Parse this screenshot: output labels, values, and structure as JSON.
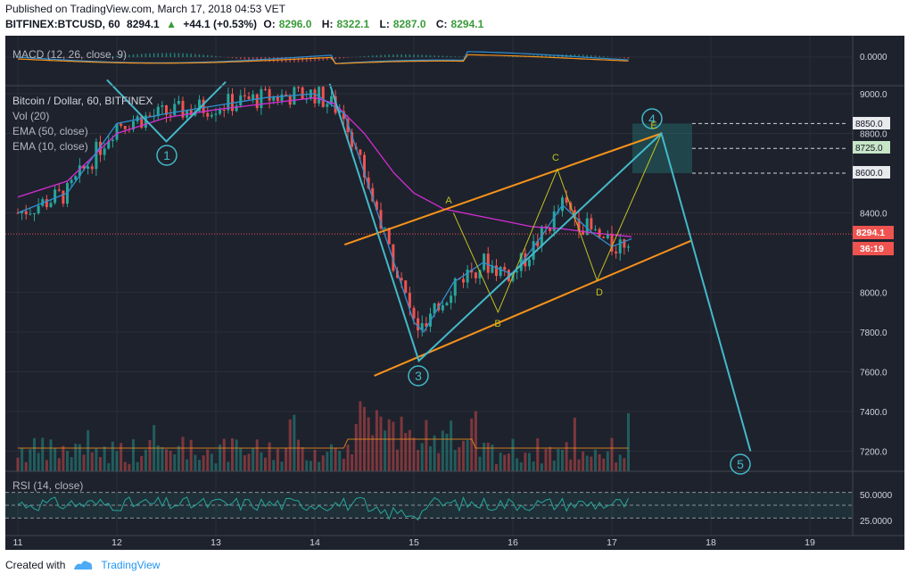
{
  "header": {
    "published": "Published on TradingView.com, March 17, 2018 04:53 VET",
    "symbol": "BITFINEX:BTCUSD, 60",
    "last": "8294.1",
    "change_arrow": "▲",
    "change": "+44.1 (+0.53%)",
    "o_label": "O:",
    "o": "8296.0",
    "h_label": "H:",
    "h": "8322.1",
    "l_label": "L:",
    "l": "8287.0",
    "c_label": "C:",
    "c": "8294.1"
  },
  "panes": {
    "macd": {
      "label": "MACD (12, 26, close, 9)",
      "scale_label": "0.0000"
    },
    "main_labels": [
      "Bitcoin / Dollar, 60, BITFINEX",
      "Vol (20)",
      "EMA (50, close)",
      "EMA (10, close)"
    ],
    "rsi": {
      "label": "RSI (14, close)",
      "ticks": [
        "50.0000",
        "25.0000"
      ]
    }
  },
  "price_badges": {
    "last": "8294.1",
    "countdown": "36:19",
    "targets": [
      "8850.0",
      "8725.0",
      "8600.0"
    ]
  },
  "wave_labels": {
    "circled": [
      "1",
      "3",
      "4",
      "5"
    ],
    "letters": [
      "A",
      "B",
      "C",
      "D",
      "E"
    ]
  },
  "footer": {
    "created_with": "Created with",
    "brand": "TradingView"
  },
  "colors": {
    "background": "#1e222d",
    "up_candle": "#26a69a",
    "down_candle": "#ef5350",
    "ema50": "#d42dd6",
    "ema10": "#2f8fd1",
    "channel": "#f7931a",
    "wave": "#43b9c9",
    "abcde": "#c2c21e",
    "last_price": "#ef5350"
  },
  "chart_data": {
    "type": "candlestick",
    "title": "Bitcoin / Dollar, 60, BITFINEX",
    "x_ticks": [
      "11",
      "12",
      "13",
      "14",
      "15",
      "16",
      "17",
      "18",
      "19"
    ],
    "y_ticks": [
      9000,
      8800,
      8400,
      8000,
      7800,
      7600,
      7400,
      7200
    ],
    "ylim": [
      7100,
      9090
    ],
    "last_price": 8294.1,
    "target_levels": [
      8850.0,
      8725.0,
      8600.0
    ],
    "ema50": [
      [
        11.0,
        8480
      ],
      [
        11.5,
        8560
      ],
      [
        12.0,
        8800
      ],
      [
        12.5,
        8880
      ],
      [
        13.0,
        8920
      ],
      [
        13.5,
        8950
      ],
      [
        14.0,
        8980
      ],
      [
        14.2,
        8950
      ],
      [
        14.5,
        8800
      ],
      [
        14.8,
        8600
      ],
      [
        15.0,
        8500
      ],
      [
        15.3,
        8420
      ],
      [
        15.6,
        8390
      ],
      [
        15.9,
        8360
      ],
      [
        16.2,
        8330
      ],
      [
        16.5,
        8320
      ],
      [
        16.8,
        8300
      ],
      [
        17.0,
        8290
      ],
      [
        17.2,
        8280
      ]
    ],
    "ema10": [
      [
        11.0,
        8400
      ],
      [
        11.5,
        8500
      ],
      [
        12.0,
        8850
      ],
      [
        12.5,
        8900
      ],
      [
        13.0,
        8940
      ],
      [
        13.5,
        8980
      ],
      [
        14.0,
        9000
      ],
      [
        14.3,
        8900
      ],
      [
        14.6,
        8450
      ],
      [
        15.0,
        7850
      ],
      [
        15.1,
        7800
      ],
      [
        15.4,
        8050
      ],
      [
        15.7,
        8150
      ],
      [
        16.0,
        8090
      ],
      [
        16.3,
        8290
      ],
      [
        16.5,
        8440
      ],
      [
        16.8,
        8300
      ],
      [
        17.0,
        8230
      ],
      [
        17.2,
        8270
      ]
    ],
    "elliott_wave": [
      {
        "label": "1",
        "x": 12.5,
        "y": 8760
      },
      {
        "label": "3",
        "x": 15.05,
        "y": 7655
      },
      {
        "label": "4",
        "x": 17.5,
        "y": 8800
      },
      {
        "label": "5",
        "x": 18.4,
        "y": 7200
      }
    ],
    "abcde": [
      {
        "label": "A",
        "x": 15.4,
        "y": 8400
      },
      {
        "label": "B",
        "x": 15.85,
        "y": 7900
      },
      {
        "label": "C",
        "x": 16.45,
        "y": 8620
      },
      {
        "label": "D",
        "x": 16.85,
        "y": 8060
      },
      {
        "label": "E",
        "x": 17.5,
        "y": 8800
      }
    ],
    "channel_upper": [
      [
        14.3,
        8240
      ],
      [
        17.5,
        8800
      ]
    ],
    "channel_lower": [
      [
        14.6,
        7580
      ],
      [
        17.8,
        8260
      ]
    ],
    "rsi_levels": [
      70,
      50,
      30
    ]
  }
}
